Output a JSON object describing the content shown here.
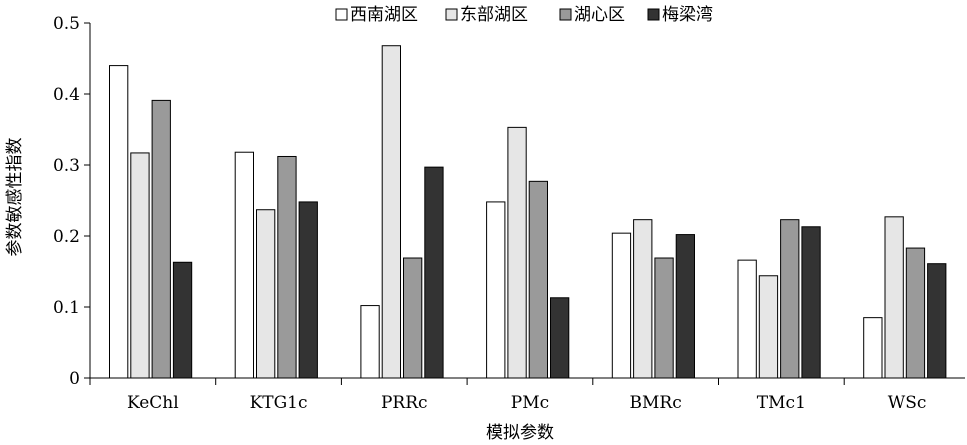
{
  "chart_data": {
    "type": "bar",
    "title": "",
    "xlabel": "模拟参数",
    "ylabel": "参数敏感性指数",
    "ylim": [
      0,
      0.5
    ],
    "yticks": [
      "0",
      "0.1",
      "0.2",
      "0.3",
      "0.4",
      "0.5"
    ],
    "grid": false,
    "legend_position": "top",
    "categories": [
      "KeChl",
      "KTG1c",
      "PRRc",
      "PMc",
      "BMRc",
      "TMc1",
      "WSc"
    ],
    "series": [
      {
        "name": "西南湖区",
        "color": "#ffffff",
        "values": [
          0.44,
          0.318,
          0.102,
          0.248,
          0.204,
          0.166,
          0.085
        ]
      },
      {
        "name": "东部湖区",
        "color": "#e6e6e6",
        "values": [
          0.317,
          0.237,
          0.468,
          0.353,
          0.223,
          0.144,
          0.227
        ]
      },
      {
        "name": "湖心区",
        "color": "#9a9a9a",
        "values": [
          0.391,
          0.312,
          0.169,
          0.277,
          0.169,
          0.223,
          0.183
        ]
      },
      {
        "name": "梅梁湾",
        "color": "#333333",
        "values": [
          0.163,
          0.248,
          0.297,
          0.113,
          0.202,
          0.213,
          0.161
        ]
      }
    ]
  }
}
